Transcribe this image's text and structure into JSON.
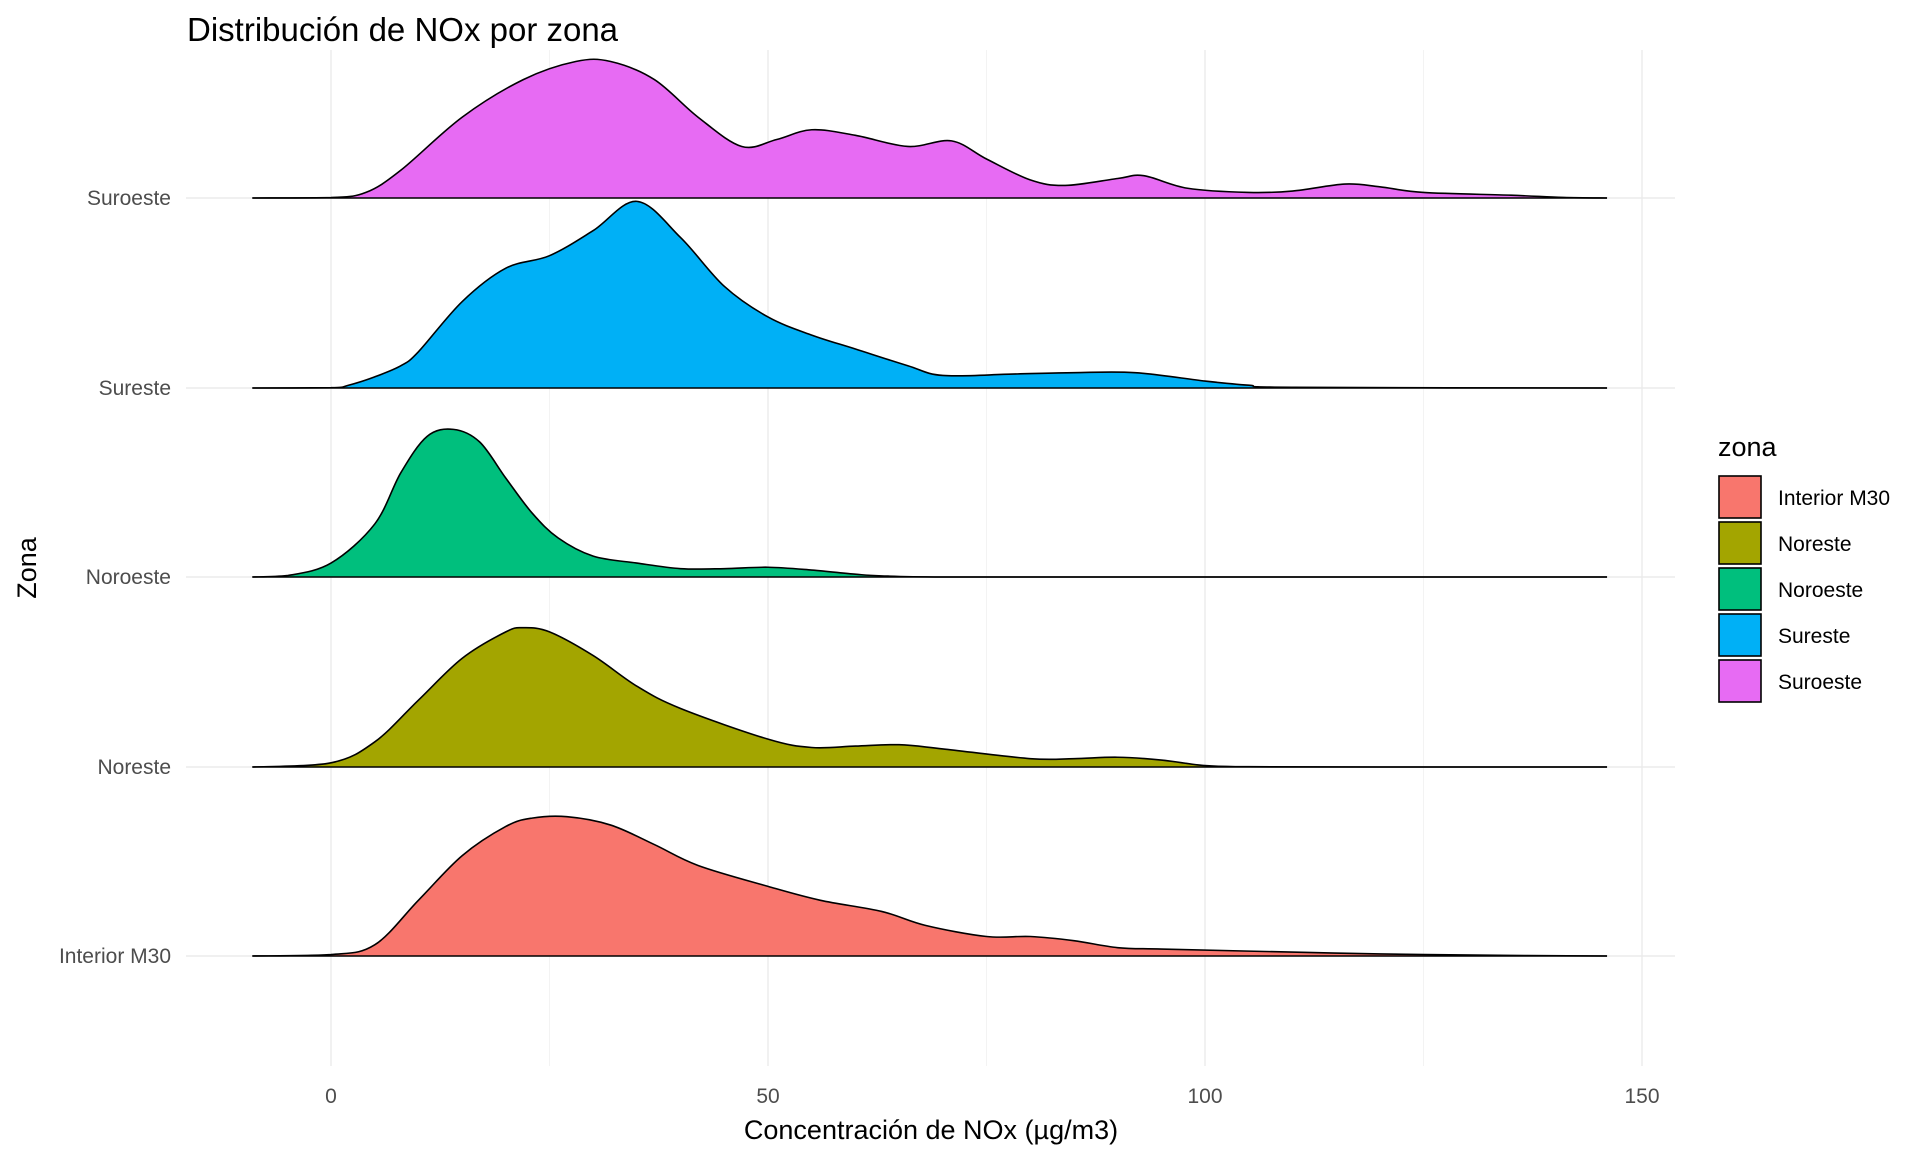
{
  "chart_data": {
    "type": "area",
    "subtype": "ridgeline",
    "title": "Distribución de NOx por zona",
    "xlabel": "Concentración de NOx (µg/m3)",
    "ylabel": "Zona",
    "xlim": [
      -15,
      155
    ],
    "x_ticks": [
      0,
      50,
      100,
      150
    ],
    "x_tick_labels": [
      "0",
      "50",
      "100",
      "150"
    ],
    "y_categories": [
      "Interior M30",
      "Noreste",
      "Noroeste",
      "Sureste",
      "Suroeste"
    ],
    "density_range": [
      -9,
      146
    ],
    "grid": true,
    "legend": {
      "title": "zona",
      "position": "right",
      "entries": [
        "Interior M30",
        "Noreste",
        "Noroeste",
        "Sureste",
        "Suroeste"
      ]
    },
    "series": [
      {
        "name": "Interior M30",
        "color": "#F8766D",
        "x": [
          -9,
          0,
          5,
          10,
          15,
          20,
          23,
          27,
          32,
          37,
          42,
          50,
          56,
          63,
          68,
          75,
          80,
          85,
          90,
          95,
          105,
          120,
          135,
          146
        ],
        "y": [
          0,
          0.01,
          0.08,
          0.4,
          0.72,
          0.93,
          0.99,
          1.0,
          0.94,
          0.8,
          0.65,
          0.5,
          0.4,
          0.32,
          0.22,
          0.14,
          0.14,
          0.11,
          0.06,
          0.05,
          0.035,
          0.015,
          0.004,
          0
        ]
      },
      {
        "name": "Noreste",
        "color": "#A3A500",
        "x": [
          -9,
          0,
          5,
          10,
          15,
          20,
          22,
          25,
          30,
          35,
          40,
          50,
          55,
          60,
          65,
          70,
          80,
          85,
          90,
          95,
          100,
          105,
          120,
          146
        ],
        "y": [
          0,
          0.03,
          0.18,
          0.48,
          0.78,
          0.97,
          1.0,
          0.97,
          0.8,
          0.58,
          0.42,
          0.2,
          0.14,
          0.15,
          0.16,
          0.13,
          0.06,
          0.06,
          0.07,
          0.05,
          0.01,
          0.002,
          0,
          0
        ]
      },
      {
        "name": "Noroeste",
        "color": "#00BF7D",
        "x": [
          -9,
          -5,
          0,
          5,
          8,
          11,
          14,
          17,
          20,
          23,
          26,
          30,
          35,
          40,
          45,
          50,
          55,
          60,
          63,
          70,
          90,
          120,
          146
        ],
        "y": [
          0,
          0.01,
          0.1,
          0.38,
          0.75,
          1.01,
          1.06,
          0.97,
          0.71,
          0.46,
          0.28,
          0.15,
          0.1,
          0.06,
          0.06,
          0.07,
          0.05,
          0.02,
          0.008,
          0,
          0,
          0,
          0
        ]
      },
      {
        "name": "Sureste",
        "color": "#00B0F6",
        "x": [
          -9,
          0,
          2,
          5,
          8,
          10,
          15,
          20,
          25,
          30,
          35,
          40,
          45,
          50,
          55,
          60,
          66,
          70,
          78,
          85,
          92,
          100,
          105,
          110,
          146
        ],
        "y": [
          0,
          0.002,
          0.02,
          0.08,
          0.16,
          0.26,
          0.62,
          0.86,
          0.95,
          1.13,
          1.34,
          1.08,
          0.73,
          0.51,
          0.38,
          0.28,
          0.16,
          0.09,
          0.1,
          0.11,
          0.11,
          0.05,
          0.02,
          0.005,
          0
        ]
      },
      {
        "name": "Suroeste",
        "color": "#E76BF3",
        "x": [
          -9,
          0,
          4,
          8,
          15,
          22,
          28,
          32,
          37,
          42,
          47,
          51,
          55,
          60,
          66,
          71,
          75,
          80,
          84,
          90,
          93,
          98,
          105,
          110,
          116,
          120,
          125,
          135,
          141,
          146
        ],
        "y": [
          0,
          0.003,
          0.04,
          0.2,
          0.58,
          0.85,
          0.98,
          0.98,
          0.85,
          0.58,
          0.37,
          0.42,
          0.49,
          0.45,
          0.37,
          0.41,
          0.28,
          0.13,
          0.09,
          0.14,
          0.16,
          0.07,
          0.04,
          0.05,
          0.1,
          0.08,
          0.04,
          0.02,
          0.004,
          0
        ]
      }
    ]
  }
}
